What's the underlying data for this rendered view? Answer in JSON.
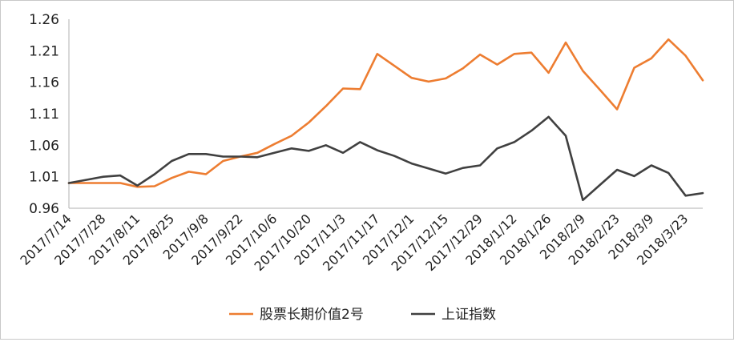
{
  "chart_data": {
    "type": "line",
    "title": "",
    "xlabel": "",
    "ylabel": "",
    "ylim": [
      0.96,
      1.26
    ],
    "yticks": [
      "1.26",
      "1.21",
      "1.16",
      "1.11",
      "1.06",
      "1.01",
      "0.96"
    ],
    "grid": false,
    "legend_position": "bottom",
    "x_tick_labels": [
      "2017/7/14",
      "2017/7/28",
      "2017/8/11",
      "2017/8/25",
      "2017/9/8",
      "2017/9/22",
      "2017/10/6",
      "2017/10/20",
      "2017/11/3",
      "2017/11/17",
      "2017/12/1",
      "2017/12/15",
      "2017/12/29",
      "2018/1/12",
      "2018/1/26",
      "2018/2/9",
      "2018/2/23",
      "2018/3/9",
      "2018/3/23"
    ],
    "x": [
      "2017/7/14",
      "2017/7/21",
      "2017/7/28",
      "2017/8/4",
      "2017/8/11",
      "2017/8/18",
      "2017/8/25",
      "2017/9/1",
      "2017/9/8",
      "2017/9/15",
      "2017/9/22",
      "2017/9/29",
      "2017/10/6",
      "2017/10/13",
      "2017/10/20",
      "2017/10/27",
      "2017/11/3",
      "2017/11/10",
      "2017/11/17",
      "2017/11/24",
      "2017/12/1",
      "2017/12/8",
      "2017/12/15",
      "2017/12/22",
      "2017/12/29",
      "2018/1/5",
      "2018/1/12",
      "2018/1/19",
      "2018/1/26",
      "2018/2/2",
      "2018/2/9",
      "2018/2/16",
      "2018/2/23",
      "2018/3/2",
      "2018/3/9",
      "2018/3/16",
      "2018/3/23",
      "2018/3/30"
    ],
    "series": [
      {
        "name": "股票长期价值2号",
        "color": "#ED7D31",
        "values": [
          1.0,
          1.0,
          1.0,
          1.0,
          0.994,
          0.995,
          1.008,
          1.018,
          1.014,
          1.035,
          1.042,
          1.048,
          1.062,
          1.075,
          1.096,
          1.122,
          1.15,
          1.149,
          1.205,
          1.186,
          1.167,
          1.161,
          1.166,
          1.182,
          1.204,
          1.188,
          1.205,
          1.207,
          1.175,
          1.223,
          1.178,
          1.148,
          1.117,
          1.183,
          1.198,
          1.228,
          1.202,
          1.163
        ]
      },
      {
        "name": "上证指数",
        "color": "#404040",
        "values": [
          1.0,
          1.005,
          1.01,
          1.012,
          0.996,
          1.014,
          1.035,
          1.046,
          1.046,
          1.042,
          1.042,
          1.041,
          1.048,
          1.055,
          1.051,
          1.06,
          1.048,
          1.065,
          1.052,
          1.043,
          1.031,
          1.023,
          1.015,
          1.024,
          1.028,
          1.055,
          1.065,
          1.083,
          1.105,
          1.075,
          0.973,
          0.997,
          1.021,
          1.011,
          1.028,
          1.016,
          0.98,
          0.984
        ]
      }
    ]
  }
}
